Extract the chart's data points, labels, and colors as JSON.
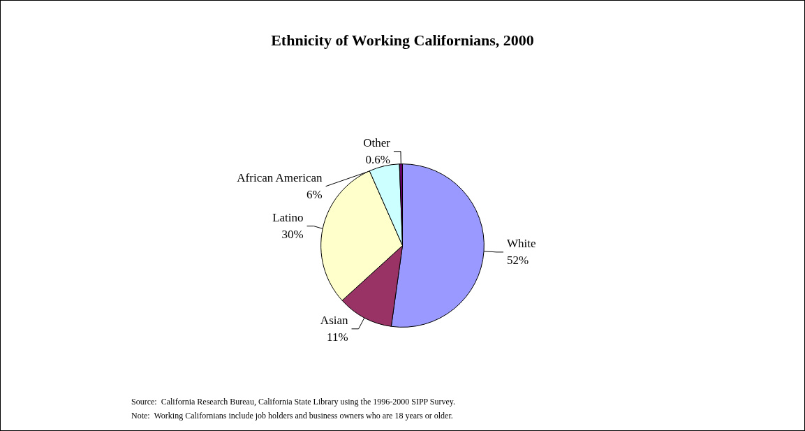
{
  "chart_data": {
    "type": "pie",
    "title": "Ethnicity of Working Californians, 2000",
    "categories": [
      "White",
      "Asian",
      "Latino",
      "African American",
      "Other"
    ],
    "values": [
      52,
      11,
      30,
      6,
      0.6
    ],
    "value_labels": [
      "52%",
      "11%",
      "30%",
      "6%",
      "0.6%"
    ],
    "colors": [
      "#9999ff",
      "#993366",
      "#ffffcc",
      "#ccffff",
      "#660066"
    ],
    "legend": false,
    "annotations": [
      "Source:  California Research Bureau, California State Library using the 1996-2000 SIPP Survey.",
      "Note:  Working Californians include job holders and business owners who are 18 years or older."
    ]
  }
}
